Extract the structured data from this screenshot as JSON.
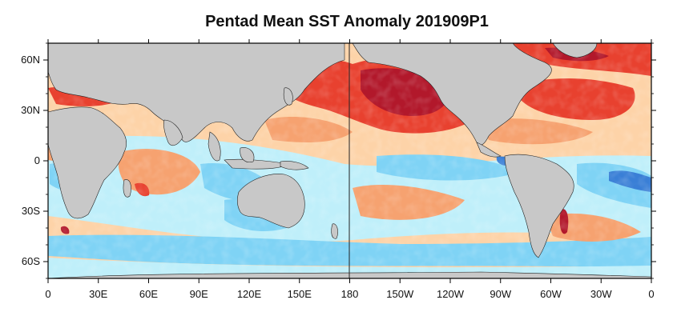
{
  "title": "Pentad Mean SST Anomaly 201909P1",
  "x_axis": {
    "tick_labels": [
      "0",
      "30E",
      "60E",
      "90E",
      "120E",
      "150E",
      "180",
      "150W",
      "120W",
      "90W",
      "60W",
      "30W",
      "0"
    ]
  },
  "y_axis": {
    "tick_labels": [
      "60N",
      "30N",
      "0",
      "30S",
      "60S"
    ]
  },
  "map": {
    "projection": "cylindrical-equidistant",
    "center_longitude": "180",
    "land_color": "#c8c8c8",
    "colors": {
      "strong_warm": "#b2182b",
      "warm": "#e8412f",
      "mild_warm": "#f6a270",
      "slight_warm": "#fdd3a8",
      "slight_cool": "#bfeffa",
      "cool": "#7fd3f5",
      "strong_cool": "#3a7fd6"
    }
  }
}
